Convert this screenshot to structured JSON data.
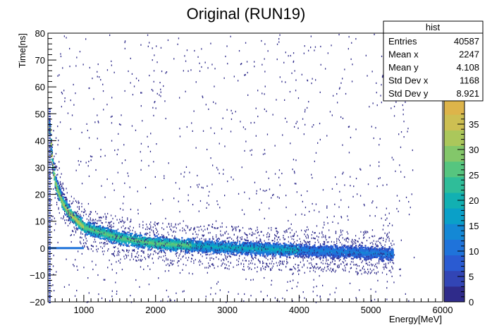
{
  "chart_data": {
    "type": "heatmap",
    "title": "Original (RUN19)",
    "xlabel": "Energy[MeV]",
    "ylabel": "Time[ns]",
    "xlim": [
      500,
      6000
    ],
    "ylim": [
      -20,
      80
    ],
    "x_ticks": [
      1000,
      2000,
      3000,
      4000,
      5000,
      6000
    ],
    "y_ticks": [
      -20,
      -10,
      0,
      10,
      20,
      30,
      40,
      50,
      60,
      70,
      80
    ],
    "z_ticks": [
      0,
      5,
      10,
      15,
      20,
      25,
      30,
      35
    ],
    "z_range": [
      0,
      40
    ],
    "band": {
      "description": "Time(Energy) correlation, decaying toward 0 ns at high energy",
      "points": [
        {
          "x": 520,
          "y": 45
        },
        {
          "x": 550,
          "y": 33
        },
        {
          "x": 600,
          "y": 24
        },
        {
          "x": 700,
          "y": 17
        },
        {
          "x": 800,
          "y": 13
        },
        {
          "x": 1000,
          "y": 8
        },
        {
          "x": 1500,
          "y": 4
        },
        {
          "x": 2000,
          "y": 2
        },
        {
          "x": 3000,
          "y": 0.5
        },
        {
          "x": 4000,
          "y": -0.5
        },
        {
          "x": 5000,
          "y": -1.5
        },
        {
          "x": 5300,
          "y": -2
        }
      ],
      "peak_count": 35
    },
    "zero_line": {
      "y": 0,
      "x_from": 500,
      "x_to": 1000
    }
  },
  "stats": {
    "title": "hist",
    "rows": [
      {
        "label": "Entries",
        "value": "40587"
      },
      {
        "label": "Mean x",
        "value": "2247"
      },
      {
        "label": "Mean y",
        "value": "4.108"
      },
      {
        "label": "Std Dev x",
        "value": "1168"
      },
      {
        "label": "Std Dev y",
        "value": "8.921"
      }
    ]
  },
  "palette": [
    "#2f2b8a",
    "#3245b5",
    "#2a5bd2",
    "#1f73da",
    "#1488d5",
    "#0aa0c8",
    "#12b0b2",
    "#2fbd99",
    "#56c57f",
    "#83c76a",
    "#abc75b",
    "#cdbf52",
    "#ddb44a"
  ]
}
